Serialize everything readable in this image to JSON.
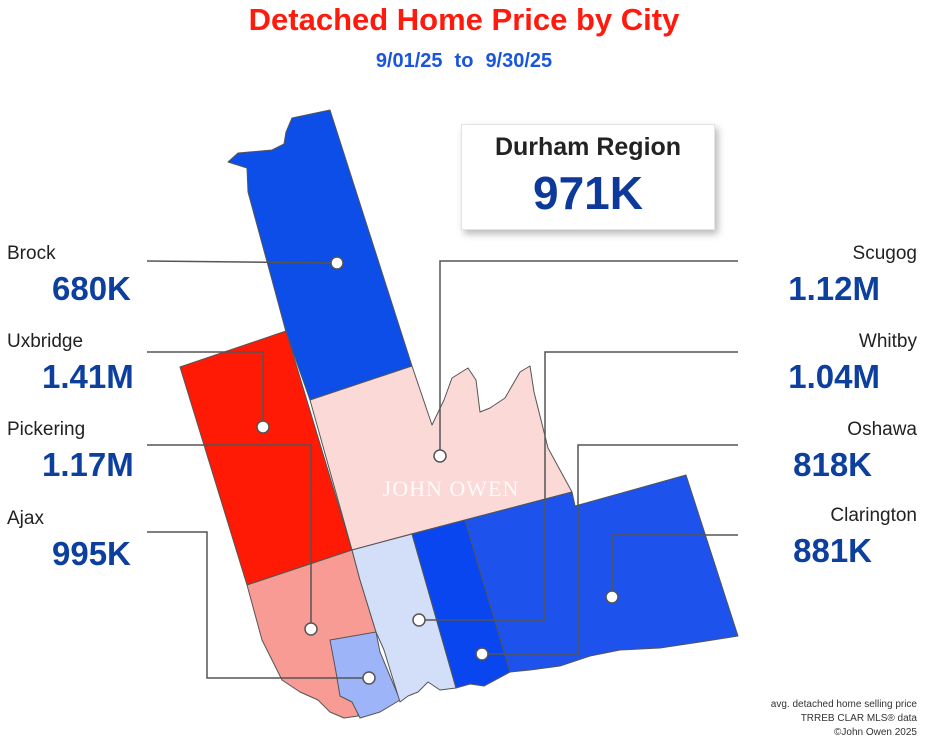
{
  "title": "Detached Home Price by City",
  "subtitle": {
    "start": "9/01/25",
    "to": "to",
    "end": "9/30/25"
  },
  "region": {
    "name": "Durham Region",
    "value": "971K"
  },
  "watermark": "JOHN OWEN",
  "colors": {
    "title": "#ff1a0e",
    "subtitle": "#1a55e0",
    "values": "#0d3f9e",
    "brock": "#0d4ee8",
    "uxbridge": "#ff1a06",
    "pickering": "#f89b94",
    "ajax": "#9db5f8",
    "scugog": "#fbd9d7",
    "whitby": "#d3def9",
    "oshawa": "#0946f0",
    "clarington": "#1d52ec"
  },
  "cities": [
    {
      "name": "Brock",
      "value": "680K"
    },
    {
      "name": "Uxbridge",
      "value": "1.41M"
    },
    {
      "name": "Pickering",
      "value": "1.17M"
    },
    {
      "name": "Ajax",
      "value": "995K"
    },
    {
      "name": "Scugog",
      "value": "1.12M"
    },
    {
      "name": "Whitby",
      "value": "1.04M"
    },
    {
      "name": "Oshawa",
      "value": "818K"
    },
    {
      "name": "Clarington",
      "value": "881K"
    }
  ],
  "footnote": [
    "avg. detached home selling price",
    "TRREB CLAR MLS® data",
    "©John Owen 2025"
  ]
}
